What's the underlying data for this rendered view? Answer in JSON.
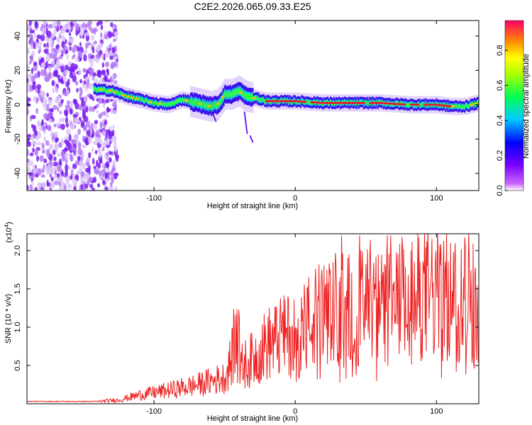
{
  "title": "C2E2.2026.065.09.33.E25",
  "chart_data": [
    {
      "type": "heatmap",
      "name": "spectrogram",
      "xlabel": "Height of straight line (km)",
      "ylabel": "Frequency (Hz)",
      "xlim": [
        -190,
        130
      ],
      "ylim": [
        -50,
        49
      ],
      "x_ticks": [
        -100,
        0,
        100
      ],
      "y_ticks": [
        -40,
        -20,
        0,
        20,
        40
      ],
      "colorbar": {
        "label": "Normalized spectral amplitude",
        "range": [
          0,
          0.97
        ],
        "ticks": [
          "0.0",
          "0.2",
          "0.4",
          "0.6",
          "0.8"
        ],
        "colormap": "rainbow"
      },
      "noise_region_x": [
        -190,
        -126
      ],
      "signal_track": {
        "x": [
          -143,
          -130,
          -120,
          -110,
          -100,
          -90,
          -80,
          -70,
          -60,
          -55,
          -50,
          -45,
          -40,
          -35,
          -30,
          -20,
          -10,
          0,
          20,
          40,
          60,
          80,
          100,
          110,
          120,
          130
        ],
        "freq": [
          9,
          8,
          5,
          3,
          1,
          0,
          3,
          1,
          -1,
          0,
          6,
          6,
          8,
          5,
          4,
          2,
          2,
          2,
          1,
          1,
          1,
          0,
          0,
          -1,
          -1,
          1
        ]
      }
    },
    {
      "type": "line",
      "name": "snr",
      "xlabel": "Height of straight line (km)",
      "ylabel": "SNR (10 * v/v)",
      "scale_label": "(x10",
      "scale_exp": "4",
      "xlim": [
        -190,
        130
      ],
      "ylim": [
        0,
        2.22
      ],
      "x_ticks": [
        -100,
        0,
        100
      ],
      "y_ticks": [
        "0.5",
        "1.0",
        "1.5",
        "2.0"
      ],
      "color": "#ee2222",
      "envelope": {
        "x": [
          -190,
          -140,
          -125,
          -110,
          -90,
          -70,
          -50,
          -42,
          -38,
          -30,
          -20,
          0,
          20,
          40,
          60,
          80,
          95,
          110,
          130
        ],
        "y": [
          0.03,
          0.03,
          0.05,
          0.12,
          0.18,
          0.25,
          0.35,
          0.75,
          0.5,
          0.6,
          0.8,
          0.95,
          1.2,
          1.3,
          1.25,
          1.35,
          1.5,
          1.4,
          1.5
        ]
      }
    }
  ]
}
